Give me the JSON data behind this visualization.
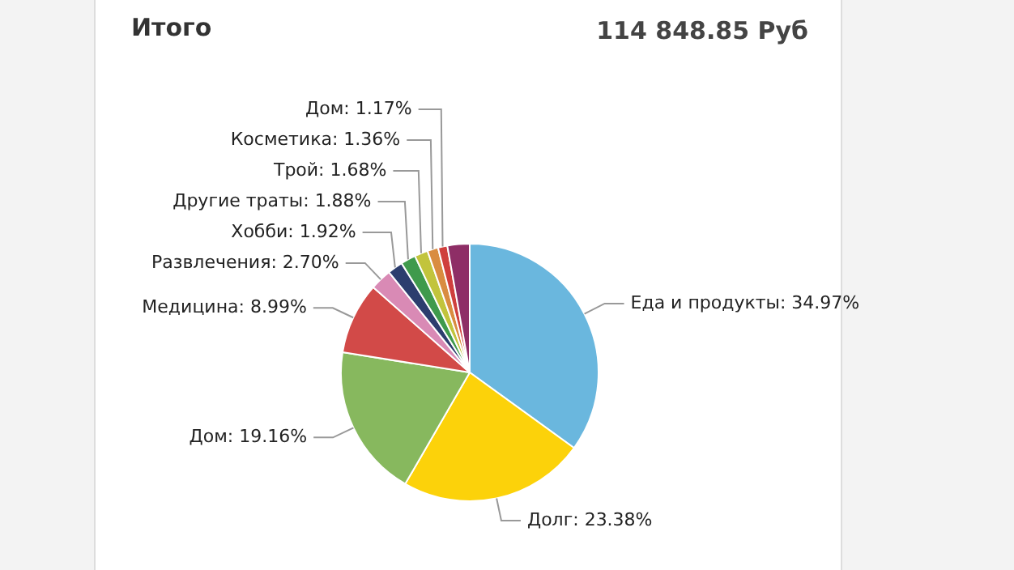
{
  "chart_data": {
    "type": "pie",
    "title": "Итого",
    "subtitle": "114 848.85 Руб",
    "categories": [
      "Еда и продукты",
      "Долг",
      "Дом",
      "Медицина",
      "Развлечения",
      "Хобби",
      "Другие траты",
      "Трой",
      "Косметика",
      "Дом",
      null
    ],
    "values": [
      34.97,
      23.38,
      19.16,
      8.99,
      2.7,
      1.92,
      1.88,
      1.68,
      1.36,
      1.17,
      2.79
    ],
    "value_labels": [
      "34.97%",
      "23.38%",
      "19.16%",
      "8.99%",
      "2.70%",
      "1.92%",
      "1.88%",
      "1.68%",
      "1.36%",
      "1.17%",
      null
    ],
    "colors": [
      "#6ab7de",
      "#fcd20a",
      "#87b85e",
      "#d24a48",
      "#d98ab5",
      "#2c3d6e",
      "#3f9a4c",
      "#c2c43c",
      "#d98c40",
      "#cf3f3d",
      "#8e2e66"
    ]
  }
}
